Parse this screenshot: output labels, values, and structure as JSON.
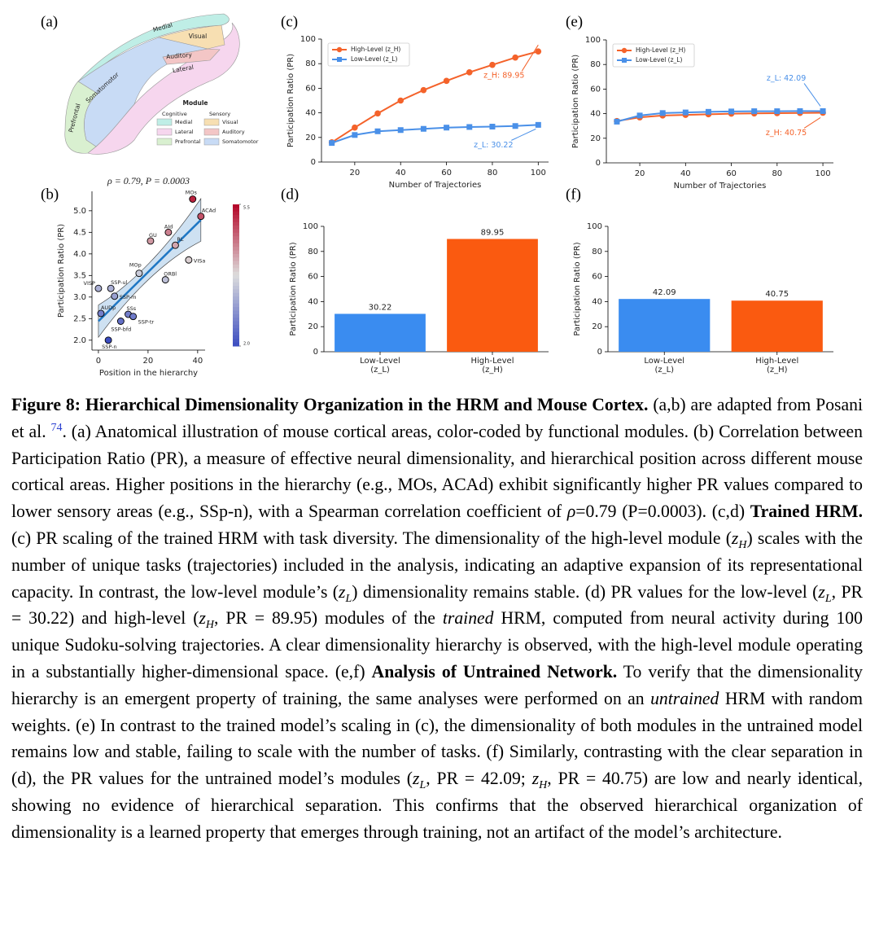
{
  "figure_a": {
    "panel": "(a)",
    "region_labels": [
      "Medial",
      "Visual",
      "Auditory",
      "Lateral",
      "Somatomotor",
      "Prefrontal"
    ],
    "legend": {
      "title": "Module",
      "groups": [
        {
          "name": "Cognitive",
          "items": [
            {
              "name": "Medial",
              "color": "#bfeee6"
            },
            {
              "name": "Lateral",
              "color": "#f6d6ee"
            },
            {
              "name": "Prefrontal",
              "color": "#d9f0d0"
            }
          ]
        },
        {
          "name": "Sensory",
          "items": [
            {
              "name": "Visual",
              "color": "#f7dfb2"
            },
            {
              "name": "Auditory",
              "color": "#f3c6c6"
            },
            {
              "name": "Somatomotor",
              "color": "#c8dbf5"
            }
          ]
        }
      ]
    }
  },
  "chart_data": [
    {
      "type": "scatter",
      "panel": "(b)",
      "title": "ρ = 0.79,  P = 0.0003",
      "xlabel": "Position in the hierarchy",
      "ylabel": "Participation Ratio (PR)",
      "point_labels": [
        "VISP",
        "SSP-ul",
        "SSP-m",
        "AUDp",
        "SSs",
        "SSP-tr",
        "SSP-bfd",
        "SSP-n",
        "MOp",
        "ORBl",
        "GU",
        "AId",
        "RL",
        "VISa",
        "ACAd",
        "MOs"
      ],
      "x": [
        0,
        5,
        6.5,
        1,
        12,
        14,
        9,
        4,
        16.4,
        27,
        21,
        28.2,
        31,
        36.4,
        41.3,
        38
      ],
      "values": [
        3.2,
        3.2,
        3.02,
        2.62,
        2.6,
        2.55,
        2.44,
        2.0,
        3.55,
        3.4,
        4.3,
        4.5,
        4.2,
        3.86,
        4.87,
        5.27
      ],
      "color": "#1f77c4",
      "xlim": [
        -2.6,
        43
      ],
      "ylim": [
        1.77,
        5.45
      ],
      "xticks": [
        0,
        20,
        40
      ],
      "yticks": [
        {
          "value": 2.0,
          "label": "2.0"
        },
        2.5,
        {
          "value": 3.0,
          "label": "3.0"
        },
        3.5,
        {
          "value": 4.0,
          "label": "4.0"
        },
        4.5,
        {
          "value": 5.0,
          "label": "5.0"
        }
      ],
      "colorbar": {
        "colormap": "coolwarm",
        "lim": [
          2.0,
          5.5
        ],
        "ticks": [
          5.5,
          {
            "value": 2.0,
            "label": "2.0"
          }
        ]
      }
    },
    {
      "type": "line",
      "panel": "(c)",
      "xlabel": "Number of Trajectories",
      "ylabel": "Participation Ratio (PR)",
      "x": [
        10,
        20,
        30,
        40,
        50,
        60,
        70,
        80,
        90,
        100
      ],
      "series": [
        {
          "name": "High-Level (z_H)",
          "color": "#f4622a",
          "marker": "circle",
          "annotation": "z_H: 89.95",
          "values": [
            16,
            28,
            39.5,
            50,
            58.5,
            66,
            73,
            79,
            85,
            89.95
          ]
        },
        {
          "name": "Low-Level (z_L)",
          "color": "#4a90e8",
          "marker": "square",
          "annotation": "z_L: 30.22",
          "values": [
            15.5,
            22,
            25,
            26,
            27,
            28,
            28.5,
            28.8,
            29.3,
            30.22
          ]
        }
      ],
      "xlim": [
        5.5,
        104.5
      ],
      "ylim": [
        0,
        100
      ],
      "xticks": [
        20,
        40,
        60,
        80,
        100
      ],
      "yticks": [
        0,
        20,
        40,
        60,
        80,
        100
      ],
      "legend": "upper left"
    },
    {
      "type": "bar",
      "panel": "(d)",
      "ylabel": "Participation Ratio (PR)",
      "categories": [
        "Low-Level\n(z_L)",
        "High-Level\n(z_H)"
      ],
      "values": [
        30.22,
        89.95
      ],
      "colors": [
        "#3a8cf0",
        "#fa5a10"
      ],
      "ylim": [
        0,
        100
      ],
      "yticks": [
        0,
        20,
        40,
        60,
        80,
        100
      ]
    },
    {
      "type": "line",
      "panel": "(e)",
      "xlabel": "Number of Trajectories",
      "ylabel": "Participation Ratio (PR)",
      "x": [
        10,
        20,
        30,
        40,
        50,
        60,
        70,
        80,
        90,
        100
      ],
      "series": [
        {
          "name": "High-Level (z_H)",
          "color": "#f4622a",
          "marker": "circle",
          "annotation": "z_H: 40.75",
          "values": [
            34,
            37,
            38.5,
            39,
            39.5,
            40,
            40.2,
            40.4,
            40.6,
            40.75
          ]
        },
        {
          "name": "Low-Level (z_L)",
          "color": "#4a90e8",
          "marker": "square",
          "annotation": "z_L: 42.09",
          "values": [
            33.5,
            38.5,
            40.5,
            41,
            41.5,
            41.8,
            42,
            42,
            42.1,
            42.09
          ]
        }
      ],
      "xlim": [
        5.4,
        104.6
      ],
      "ylim": [
        0,
        100
      ],
      "xticks": [
        20,
        40,
        60,
        80,
        100
      ],
      "yticks": [
        0,
        20,
        40,
        60,
        80,
        100
      ],
      "legend": "upper left"
    },
    {
      "type": "bar",
      "panel": "(f)",
      "ylabel": "Participation Ratio (PR)",
      "categories": [
        "Low-Level\n(z_L)",
        "High-Level\n(z_H)"
      ],
      "values": [
        42.09,
        40.75
      ],
      "colors": [
        "#3a8cf0",
        "#fa5a10"
      ],
      "ylim": [
        0,
        100
      ],
      "yticks": [
        0,
        20,
        40,
        60,
        80,
        100
      ]
    }
  ],
  "caption": [
    {
      "t": "Figure 8: Hierarchical Dimensionality Organization in the HRM and Mouse Cortex.",
      "s": "b"
    },
    {
      "t": " (a,b) are adapted from Posani et al. "
    },
    {
      "t": "74",
      "s": "sup"
    },
    {
      "t": ". (a) Anatomical illustration of mouse cortical areas, color-coded by functional modules. (b) Correlation between Participation Ratio (PR), a measure of effective neural dimensionality, and hierarchical position across different mouse cortical areas. Higher positions in the hierarchy (e.g., MOs, ACAd) exhibit significantly higher PR values compared to lower sensory areas (e.g., SSp-n), with a Spearman correlation coefficient of "
    },
    {
      "t": "ρ",
      "s": "m"
    },
    {
      "t": "=0.79 (P=0.0003). (c,d) "
    },
    {
      "t": "Trained HRM.",
      "s": "b"
    },
    {
      "t": " (c) PR scaling of the trained HRM with task diversity.  The dimensionality of the high-level module ("
    },
    {
      "t": "z",
      "s": "m"
    },
    {
      "t": "H",
      "s": "sub"
    },
    {
      "t": ") scales with the number of unique tasks (trajectories) included in the analysis, indicating an adaptive expansion of its representational capacity. In contrast, the low-level module’s ("
    },
    {
      "t": "z",
      "s": "m"
    },
    {
      "t": "L",
      "s": "sub"
    },
    {
      "t": ") dimensionality remains stable.  (d) PR values for the low-level ("
    },
    {
      "t": "z",
      "s": "m"
    },
    {
      "t": "L",
      "s": "sub"
    },
    {
      "t": ", PR = 30.22) and high-level ("
    },
    {
      "t": "z",
      "s": "m"
    },
    {
      "t": "H",
      "s": "sub"
    },
    {
      "t": ", PR = 89.95) modules of the "
    },
    {
      "t": "trained",
      "s": "i"
    },
    {
      "t": " HRM, computed from neural activity during 100 unique Sudoku-solving trajectories.  A clear dimensionality hierarchy is observed, with the high-level module operating in a substantially higher-dimensional space. (e,f) "
    },
    {
      "t": "Analysis of Untrained Network.",
      "s": "b"
    },
    {
      "t": " To verify that the dimensionality hierarchy is an emergent property of training, the same analyses were performed on an "
    },
    {
      "t": "untrained",
      "s": "i"
    },
    {
      "t": " HRM with random weights. (e) In contrast to the trained model’s scaling in (c), the dimensionality of both modules in the untrained model remains low and stable, failing to scale with the number of tasks. (f) Similarly, contrasting with the clear separation in (d), the PR values for the untrained model’s modules ("
    },
    {
      "t": "z",
      "s": "m"
    },
    {
      "t": "L",
      "s": "sub"
    },
    {
      "t": ", PR = 42.09; "
    },
    {
      "t": "z",
      "s": "m"
    },
    {
      "t": "H",
      "s": "sub"
    },
    {
      "t": ", PR = 40.75) are low and nearly identical, showing no evidence of hierarchical separation.  This confirms that the observed hierarchical organization of dimensionality is a learned property that emerges through training, not an artifact of the model’s architecture."
    }
  ]
}
